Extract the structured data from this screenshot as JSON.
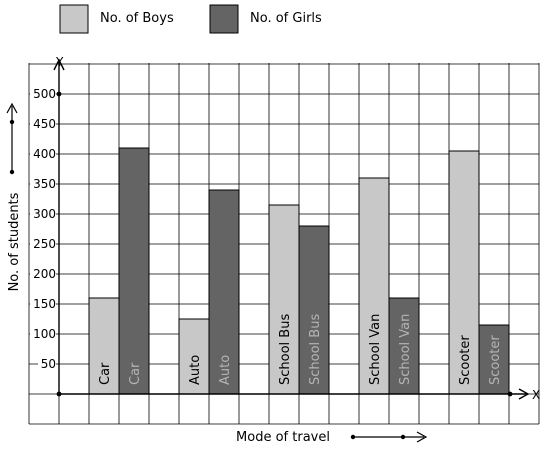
{
  "chart_data": {
    "type": "bar",
    "title": "",
    "xlabel": "Mode of travel",
    "ylabel": "No. of students",
    "x_axis_letter": "X",
    "y_axis_letter": "Y",
    "categories": [
      "Car",
      "Auto",
      "School Bus",
      "School Van",
      "Scooter"
    ],
    "series": [
      {
        "name": "No. of Boys",
        "values": [
          160,
          125,
          315,
          360,
          405
        ]
      },
      {
        "name": "No. of Girls",
        "values": [
          410,
          340,
          280,
          160,
          115
        ]
      }
    ],
    "ylim": [
      0,
      500
    ],
    "yticks": [
      50,
      100,
      150,
      200,
      250,
      300,
      350,
      400,
      450,
      500
    ],
    "ytick_labels": [
      "50",
      "100",
      "150",
      "200",
      "250",
      "300",
      "350",
      "400",
      "450",
      "500"
    ],
    "grid": true,
    "legend_position": "top-left",
    "colors": {
      "boys": "#c8c8c8",
      "girls": "#646464"
    }
  }
}
